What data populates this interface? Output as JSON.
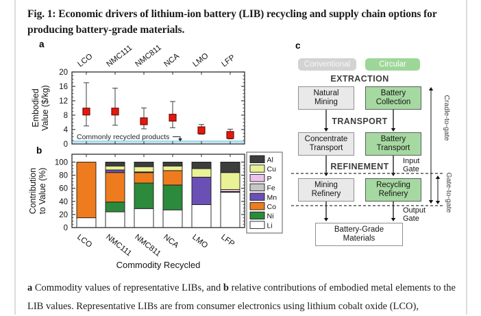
{
  "figure": {
    "title": "Fig. 1: Economic drivers of lithium-ion battery (LIB) recycling and supply chain options for producing battery-grade materials.",
    "panel_labels": {
      "a": "a",
      "b": "b",
      "c": "c"
    },
    "caption": {
      "marker_a": "a",
      "part1": " Commodity values of representative LIBs, and ",
      "marker_b": "b",
      "part2": " relative contributions of embodied metal elements to the LIB values. Representative LIBs are from consumer electronics using lithium cobalt oxide (LCO),"
    }
  },
  "chart_data": [
    {
      "id": "embodied-value",
      "type": "scatter",
      "categories": [
        "LCO",
        "NMC111",
        "NMC811",
        "NCA",
        "LMO",
        "LFP"
      ],
      "values": [
        9,
        9,
        6.3,
        7.3,
        3.8,
        2.5
      ],
      "error_low": [
        5,
        5.2,
        4.2,
        4.5,
        2.7,
        1.4
      ],
      "error_high": [
        17,
        15.5,
        10,
        11.8,
        5.4,
        4.1
      ],
      "ylabel_line1": "Embodied",
      "ylabel_line2": "Value ($/kg)",
      "ylim": [
        0,
        20
      ],
      "yticks": [
        0,
        4,
        8,
        12,
        16,
        20
      ],
      "marker_color": "#e4180f",
      "marker_edge": "#701008",
      "band": {
        "from": 0.3,
        "to": 1.0,
        "color": "#aadcee",
        "label": "Commonly recycled products"
      }
    },
    {
      "id": "contribution-to-value",
      "type": "bar",
      "stacked": true,
      "categories": [
        "LCO",
        "NMC111",
        "NMC811",
        "NCA",
        "LMO",
        "LFP"
      ],
      "series": [
        {
          "name": "Li",
          "color": "#ffffff",
          "values": [
            15,
            24,
            29,
            27,
            35,
            54
          ]
        },
        {
          "name": "Ni",
          "color": "#2c8a3c",
          "values": [
            0,
            15,
            39,
            38,
            0,
            0
          ]
        },
        {
          "name": "Co",
          "color": "#ee7c1e",
          "values": [
            85,
            45,
            16,
            22,
            0,
            0
          ]
        },
        {
          "name": "Mn",
          "color": "#6a50b4",
          "values": [
            0,
            4,
            1,
            0,
            42,
            0
          ]
        },
        {
          "name": "Fe",
          "color": "#c6c6c6",
          "values": [
            0,
            0,
            0,
            0,
            0,
            1
          ]
        },
        {
          "name": "P",
          "color": "#eec3ea",
          "values": [
            0,
            0,
            0,
            0,
            0,
            3
          ]
        },
        {
          "name": "Cu",
          "color": "#e9f295",
          "values": [
            0,
            6,
            8,
            7,
            13,
            26
          ]
        },
        {
          "name": "Al",
          "color": "#3d3d3d",
          "values": [
            0,
            6,
            7,
            6,
            10,
            16
          ]
        }
      ],
      "legend_order": [
        "Al",
        "Cu",
        "P",
        "Fe",
        "Mn",
        "Co",
        "Ni",
        "Li"
      ],
      "ylabel_line1": "Contribution",
      "ylabel_line2": "to Value (%)",
      "xlabel": "Commodity Recycled",
      "ylim": [
        0,
        100
      ],
      "yticks": [
        0,
        20,
        40,
        60,
        80,
        100
      ],
      "legend_position": "right"
    }
  ],
  "flow": {
    "legend": {
      "conventional": "Conventional",
      "circular": "Circular"
    },
    "stages": {
      "extraction": "EXTRACTION",
      "transport": "TRANSPORT",
      "refinement": "REFINEMENT"
    },
    "boxes": {
      "natural_mining": "Natural\nMining",
      "battery_collection": "Battery\nCollection",
      "concentrate_transport": "Concentrate\nTransport",
      "battery_transport": "Battery\nTransport",
      "mining_refinery": "Mining\nRefinery",
      "recycling_refinery": "Recycling\nRefinery",
      "battery_grade": "Battery-Grade\nMaterials"
    },
    "gates": {
      "input": "Input\nGate",
      "output": "Output\nGate"
    },
    "spans": {
      "cradle": "Cradle-to-gate",
      "gate": "Gate-to-gate"
    },
    "colors": {
      "conventional_fill": "#e9e9e9",
      "circular_fill": "#a6d9a1",
      "pill_conventional": "#d3d3d3",
      "pill_circular": "#9dd698"
    }
  }
}
